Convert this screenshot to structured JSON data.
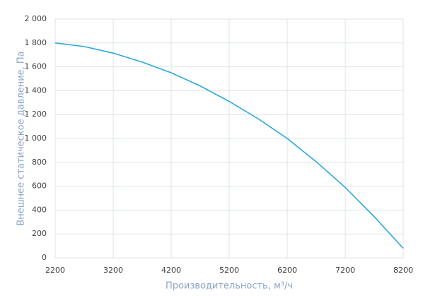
{
  "chart_data": {
    "type": "line",
    "xlabel": "Производительность, м³/ч",
    "ylabel": "Внешнее статическое давление, Па",
    "series": [
      {
        "color": "#2aa8dc",
        "x": [
          2200,
          2700,
          3200,
          3700,
          4200,
          4700,
          5200,
          5700,
          6200,
          6700,
          7200,
          7700,
          8200
        ],
        "values": [
          1800,
          1770,
          1715,
          1640,
          1550,
          1440,
          1310,
          1165,
          1000,
          805,
          590,
          345,
          80
        ]
      }
    ],
    "xlim": [
      2200,
      8200
    ],
    "xticks": [
      2200,
      3200,
      4200,
      5200,
      6200,
      7200,
      8200
    ],
    "ylim": [
      0,
      2000
    ],
    "yticks": [
      0,
      200,
      400,
      600,
      800,
      {
        "value": 1000,
        "label": "1 000"
      },
      {
        "value": 1200,
        "label": "1 200"
      },
      {
        "value": 1400,
        "label": "1 400"
      },
      {
        "value": 1600,
        "label": "1 600"
      },
      {
        "value": 1800,
        "label": "1 800"
      },
      {
        "value": 2000,
        "label": "2 000"
      }
    ],
    "grid": true
  }
}
